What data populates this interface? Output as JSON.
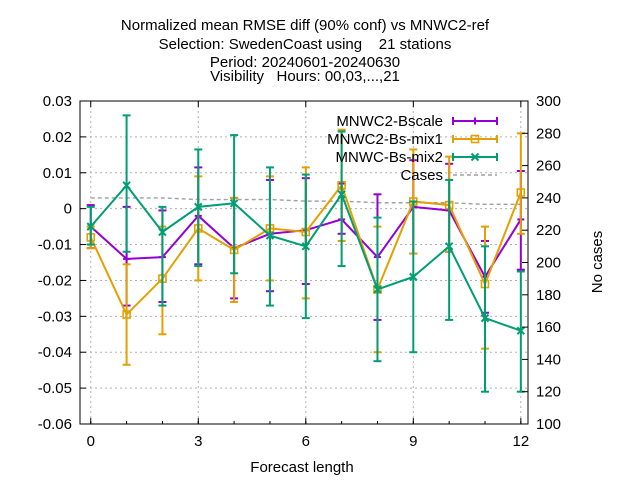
{
  "chart_data": {
    "type": "line",
    "title": [
      "Normalized mean RMSE diff (90% conf) vs MNWC2-ref",
      "Selection: SwedenCoast using    21 stations",
      "Period: 20240601-20240630",
      "Visibility   Hours: 00,03,...,21"
    ],
    "xlabel": "Forecast length",
    "ylabel": "",
    "y2label": "No cases",
    "xlim": [
      -0.3,
      12.2
    ],
    "ylim": [
      -0.06,
      0.03
    ],
    "y2lim": [
      100,
      300
    ],
    "xticks": [
      "0",
      "3",
      "6",
      "9",
      "12"
    ],
    "yticks": [
      "-0.06",
      "-0.05",
      "-0.04",
      "-0.03",
      "-0.02",
      "-0.01",
      "0",
      "0.01",
      "0.02",
      "0.03"
    ],
    "y2ticks": [
      "100",
      "120",
      "140",
      "160",
      "180",
      "200",
      "220",
      "240",
      "260",
      "280",
      "300"
    ],
    "grid": true,
    "legend_position": "top-right",
    "x": [
      0,
      1,
      2,
      3,
      4,
      5,
      6,
      7,
      8,
      9,
      10,
      11,
      12
    ],
    "series": [
      {
        "name": "MNWC2-Bscale",
        "color": "#9400d3",
        "axis": "y1",
        "values": [
          -0.005,
          -0.014,
          -0.0135,
          -0.002,
          -0.011,
          -0.007,
          -0.006,
          -0.003,
          -0.0135,
          0.0005,
          -0.0005,
          -0.019,
          -0.003
        ],
        "err_low": [
          -0.011,
          -0.027,
          -0.026,
          -0.0155,
          -0.025,
          -0.023,
          -0.021,
          -0.007,
          -0.031,
          -0.0125,
          -0.012,
          -0.029,
          -0.017
        ],
        "err_high": [
          0.001,
          0.0005,
          -0.0005,
          0.0115,
          0.003,
          0.008,
          0.0085,
          0.007,
          0.004,
          0.0135,
          0.0125,
          -0.009,
          0.0105
        ]
      },
      {
        "name": "MNWC2-Bs-mix1",
        "color": "#e69f00",
        "axis": "y1",
        "values": [
          -0.008,
          -0.0295,
          -0.0195,
          -0.0055,
          -0.0115,
          -0.0055,
          -0.0065,
          0.0065,
          -0.0225,
          0.002,
          0.001,
          -0.021,
          0.0045
        ],
        "err_low": [
          -0.011,
          -0.0435,
          -0.035,
          -0.02,
          -0.026,
          -0.02,
          -0.025,
          -0.009,
          -0.04,
          -0.0125,
          -0.012,
          -0.039,
          -0.007
        ],
        "err_high": [
          -0.005,
          -0.0155,
          -0.005,
          0.009,
          0.003,
          0.009,
          0.0115,
          0.022,
          -0.005,
          0.0165,
          0.0145,
          -0.005,
          0.021
        ]
      },
      {
        "name": "MNWC-Bs-mix2",
        "color": "#009e73",
        "axis": "y1",
        "values": [
          -0.005,
          0.0065,
          -0.0065,
          0.0005,
          0.0015,
          -0.0075,
          -0.0105,
          0.004,
          -0.0225,
          -0.019,
          -0.0105,
          -0.0305,
          -0.034
        ],
        "err_low": [
          -0.01,
          -0.012,
          -0.027,
          -0.016,
          -0.018,
          -0.027,
          -0.0305,
          -0.016,
          -0.0425,
          -0.04,
          -0.031,
          -0.051,
          -0.051
        ],
        "err_high": [
          0.0005,
          0.026,
          0.0005,
          0.0165,
          0.0205,
          0.0115,
          0.0095,
          0.0215,
          -0.0025,
          0.002,
          0.008,
          -0.0105,
          -0.0175
        ]
      },
      {
        "name": "Cases",
        "color": "#a0a0a0",
        "axis": "y2",
        "dashed": true,
        "values": [
          240,
          240,
          240,
          239,
          239,
          239,
          238,
          238,
          237,
          237,
          237,
          236,
          236
        ]
      }
    ]
  }
}
